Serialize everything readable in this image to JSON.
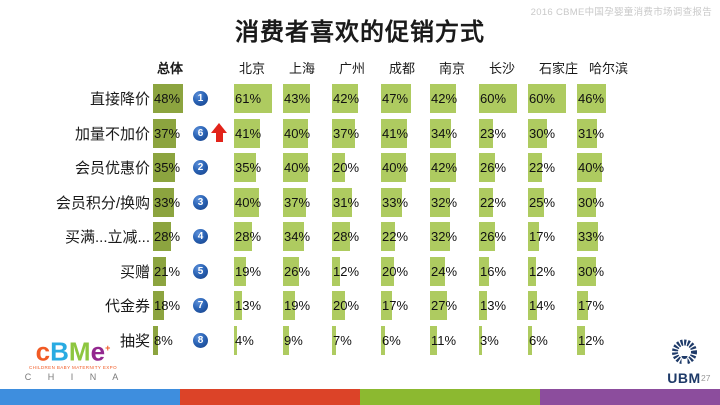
{
  "meta": {
    "watermark": "2016 CBME中国孕婴童消费市场调查报告",
    "page_number": "27"
  },
  "title": "消费者喜欢的促销方式",
  "chart_data": {
    "type": "bar",
    "title": "消费者喜欢的促销方式",
    "unit": "%",
    "orientation": "horizontal",
    "columns": [
      "总体",
      "北京",
      "上海",
      "广州",
      "成都",
      "南京",
      "长沙",
      "石家庄",
      "哈尔滨"
    ],
    "rows": [
      {
        "label": "直接降价",
        "overall_rank": 1,
        "trend": null,
        "values": [
          48,
          61,
          43,
          42,
          47,
          42,
          60,
          60,
          46
        ]
      },
      {
        "label": "加量不加价",
        "overall_rank": 6,
        "trend": "up",
        "values": [
          37,
          41,
          40,
          37,
          41,
          34,
          23,
          30,
          31
        ]
      },
      {
        "label": "会员优惠价",
        "overall_rank": 2,
        "trend": null,
        "values": [
          35,
          35,
          40,
          20,
          40,
          42,
          26,
          22,
          40
        ]
      },
      {
        "label": "会员积分/换购",
        "overall_rank": 3,
        "trend": null,
        "values": [
          33,
          40,
          37,
          31,
          33,
          32,
          22,
          25,
          30
        ]
      },
      {
        "label": "买满...立减...",
        "overall_rank": 4,
        "trend": null,
        "values": [
          28,
          28,
          34,
          28,
          22,
          32,
          26,
          17,
          33
        ]
      },
      {
        "label": "买赠",
        "overall_rank": 5,
        "trend": null,
        "values": [
          21,
          19,
          26,
          12,
          20,
          24,
          16,
          12,
          30
        ]
      },
      {
        "label": "代金券",
        "overall_rank": 7,
        "trend": null,
        "values": [
          18,
          13,
          19,
          20,
          17,
          27,
          13,
          14,
          17
        ]
      },
      {
        "label": "抽奖",
        "overall_rank": 8,
        "trend": null,
        "values": [
          8,
          4,
          9,
          7,
          6,
          11,
          3,
          6,
          12
        ]
      }
    ],
    "colors": {
      "overall_bar": "#8ca43f",
      "city_bar": "#aecb60",
      "rank_badge": "#1c55a7",
      "trend_up_arrow": "#e2231a"
    },
    "value_range": [
      0,
      61
    ],
    "legend": "none",
    "grid": "off"
  },
  "footer": {
    "cbme_logo": {
      "letters": [
        {
          "char": "c",
          "color": "#f15a24"
        },
        {
          "char": "B",
          "color": "#29abe2"
        },
        {
          "char": "M",
          "color": "#8dc63f"
        },
        {
          "char": "e",
          "color": "#93278f"
        }
      ],
      "plus": "+",
      "tagline": "CHILDREN BABY MATERNITY EXPO",
      "country": "C H I N A"
    },
    "ubm_label": "UBM",
    "bottom_bar_colors": [
      "#3e8ede",
      "#dc4328",
      "#8cb930",
      "#8c4d9d"
    ]
  }
}
